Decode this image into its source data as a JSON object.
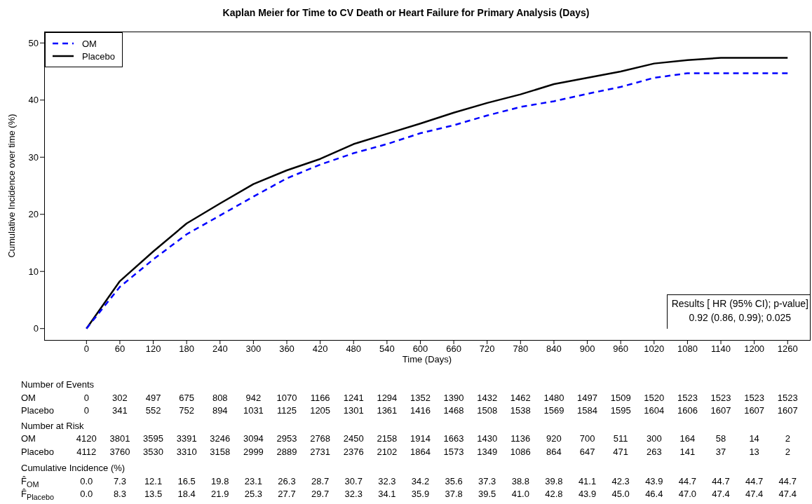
{
  "chart_data": {
    "type": "line",
    "title": "Kaplan Meier for Time to CV Death or Heart Failure for Primary Analysis (Days)",
    "xlabel": "Time (Days)",
    "ylabel": "Cumulative Incidence over time (%)",
    "x": [
      0,
      60,
      120,
      180,
      240,
      300,
      360,
      420,
      480,
      540,
      600,
      660,
      720,
      780,
      840,
      900,
      960,
      1020,
      1080,
      1140,
      1200,
      1260
    ],
    "series": [
      {
        "name": "OM",
        "color": "#0000ff",
        "line_style": "dashed",
        "values": [
          0.0,
          7.3,
          12.1,
          16.5,
          19.8,
          23.1,
          26.3,
          28.7,
          30.7,
          32.3,
          34.2,
          35.6,
          37.3,
          38.8,
          39.8,
          41.1,
          42.3,
          43.9,
          44.7,
          44.7,
          44.7,
          44.7
        ]
      },
      {
        "name": "Placebo",
        "color": "#000000",
        "line_style": "solid",
        "values": [
          0.0,
          8.3,
          13.5,
          18.4,
          21.9,
          25.3,
          27.7,
          29.7,
          32.3,
          34.1,
          35.9,
          37.8,
          39.5,
          41.0,
          42.8,
          43.9,
          45.0,
          46.4,
          47.0,
          47.4,
          47.4,
          47.4
        ]
      }
    ],
    "xlim": [
      -76,
      1300
    ],
    "xticks": [
      0,
      60,
      120,
      180,
      240,
      300,
      360,
      420,
      480,
      540,
      600,
      660,
      720,
      780,
      840,
      900,
      960,
      1020,
      1080,
      1140,
      1200,
      1260
    ],
    "ylim": [
      -2,
      52
    ],
    "yticks": [
      0,
      10,
      20,
      30,
      40,
      50
    ],
    "grid": false,
    "legend": "top left",
    "annotations": [
      "Results [ HR (95% CI); p-value]",
      "0.92 (0.86, 0.99); 0.025",
      "Number of Events",
      "OM 0 302 497 675 808 942 1070 1166 1241 1294 1352 1390 1432 1462 1480 1497 1509 1520 1523 1523 1523 1523",
      "Placebo 0 341 552 752 894 1031 1125 1205 1301 1361 1416 1468 1508 1538 1569 1584 1595 1604 1606 1607 1607 1607",
      "Number at Risk",
      "OM 4120 3801 3595 3391 3246 3094 2953 2768 2450 2158 1914 1663 1430 1136 920 700 511 300 164 58 14 2",
      "Placebo 4112 3760 3530 3310 3158 2999 2889 2731 2376 2102 1864 1573 1349 1086 864 647 471 263 141 37 13 2",
      "Cumulative Incidence (%)",
      "F̂$_{OM}$ 0.0 7.3 12.1 16.5 19.8 23.1 26.3 28.7 30.7 32.3 34.2 35.6 37.3 38.8 39.8 41.1 42.3 43.9 44.7 44.7 44.7 44.7",
      "F̂$_{Placebo}$ 0.0 8.3 13.5 18.4 21.9 25.3 27.7 29.7 32.3 34.1 35.9 37.8 39.5 41.0 42.8 43.9 45.0 46.4 47.0 47.4 47.4 47.4"
    ]
  }
}
